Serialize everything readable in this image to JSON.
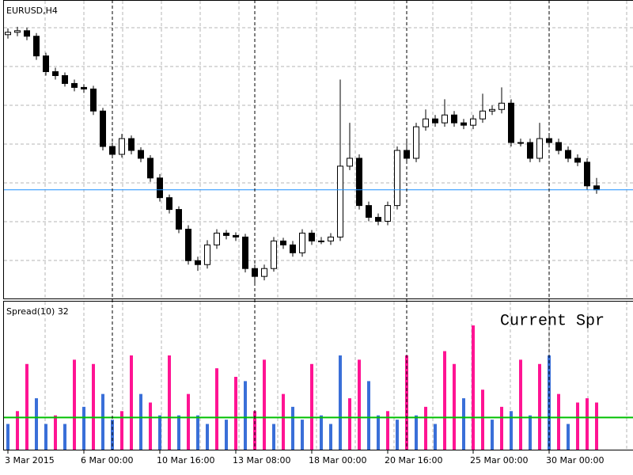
{
  "chart_data": [
    {
      "type": "candlestick",
      "title": "EURUSD,H4",
      "categories": [
        "3 Mar 2015",
        null,
        null,
        null,
        null,
        null,
        null,
        null,
        "6 Mar 00:00",
        null,
        null,
        null,
        null,
        null,
        null,
        null,
        "10 Mar 16:00",
        null,
        null,
        null,
        null,
        null,
        null,
        null,
        "13 Mar 08:00",
        null,
        null,
        null,
        null,
        null,
        null,
        null,
        "18 Mar 00:00",
        null,
        null,
        null,
        null,
        null,
        null,
        null,
        "20 Mar 16:00",
        null,
        null,
        null,
        null,
        null,
        null,
        null,
        null,
        "25 Mar 00:00",
        null,
        null,
        null,
        null,
        null,
        null,
        null,
        "30 Mar 00:00",
        null,
        null,
        null,
        null,
        null
      ],
      "open": [
        1.107,
        1.1076,
        1.108,
        1.1066,
        1.1016,
        1.0976,
        1.0966,
        1.0946,
        1.0936,
        1.0932,
        1.0876,
        1.0786,
        1.0766,
        1.0806,
        1.0776,
        1.0756,
        1.0706,
        1.0656,
        1.0626,
        1.0576,
        1.0496,
        1.0486,
        1.0536,
        1.0566,
        1.056,
        1.0556,
        1.0476,
        1.0456,
        1.0476,
        1.0546,
        1.0536,
        1.0516,
        1.0566,
        1.0546,
        1.0546,
        1.0556,
        1.0736,
        1.0756,
        1.0636,
        1.0606,
        1.0596,
        1.0636,
        1.0776,
        1.0756,
        1.0836,
        1.0856,
        1.0846,
        1.0866,
        1.0846,
        1.084,
        1.0856,
        1.0876,
        1.088,
        1.0896,
        1.0796,
        1.0796,
        1.0756,
        1.0806,
        1.0796,
        1.0776,
        1.0756,
        1.0746,
        1.0686
      ],
      "high": [
        1.1086,
        1.109,
        1.1088,
        1.1074,
        1.1024,
        1.0986,
        1.0974,
        1.0956,
        1.0944,
        1.094,
        1.0884,
        1.0796,
        1.0818,
        1.0814,
        1.0784,
        1.0764,
        1.0716,
        1.0664,
        1.0634,
        1.0586,
        1.0506,
        1.0548,
        1.0576,
        1.0574,
        1.0568,
        1.0564,
        1.0486,
        1.0486,
        1.0556,
        1.0554,
        1.0546,
        1.0576,
        1.0574,
        1.0556,
        1.0566,
        1.0956,
        1.0846,
        1.0766,
        1.0646,
        1.0616,
        1.0646,
        1.0786,
        1.08,
        1.0846,
        1.088,
        1.0866,
        1.0906,
        1.0876,
        1.0856,
        1.0866,
        1.092,
        1.089,
        1.0936,
        1.0906,
        1.0806,
        1.0806,
        1.0846,
        1.0816,
        1.0806,
        1.0786,
        1.0766,
        1.0756,
        1.0706
      ],
      "low": [
        1.106,
        1.1066,
        1.1056,
        1.1006,
        1.0966,
        1.0956,
        1.0938,
        1.0926,
        1.0922,
        1.0866,
        1.0776,
        1.0756,
        1.0758,
        1.0766,
        1.0746,
        1.0696,
        1.0646,
        1.0616,
        1.0566,
        1.0486,
        1.047,
        1.0476,
        1.0526,
        1.055,
        1.0546,
        1.0466,
        1.044,
        1.0446,
        1.0468,
        1.0526,
        1.0506,
        1.0506,
        1.0536,
        1.0538,
        1.0536,
        1.0546,
        1.0726,
        1.0626,
        1.0596,
        1.0586,
        1.0586,
        1.0626,
        1.0746,
        1.0746,
        1.0826,
        1.0836,
        1.0836,
        1.0836,
        1.083,
        1.083,
        1.0846,
        1.0866,
        1.087,
        1.0786,
        1.0786,
        1.0746,
        1.0746,
        1.0786,
        1.0766,
        1.0746,
        1.0736,
        1.0676,
        1.0666
      ],
      "close": [
        1.1076,
        1.108,
        1.1066,
        1.1016,
        1.0976,
        1.0966,
        1.0946,
        1.0936,
        1.0932,
        1.0876,
        1.0786,
        1.0766,
        1.0806,
        1.0776,
        1.0756,
        1.0706,
        1.0656,
        1.0626,
        1.0576,
        1.0496,
        1.0486,
        1.0536,
        1.0566,
        1.056,
        1.0556,
        1.0476,
        1.0456,
        1.0476,
        1.0546,
        1.0536,
        1.0516,
        1.0566,
        1.0546,
        1.0546,
        1.0556,
        1.0736,
        1.0756,
        1.0636,
        1.0606,
        1.0596,
        1.0636,
        1.0776,
        1.0756,
        1.0836,
        1.0856,
        1.0846,
        1.0866,
        1.0846,
        1.084,
        1.0856,
        1.0876,
        1.088,
        1.0896,
        1.0796,
        1.0796,
        1.0756,
        1.0806,
        1.0796,
        1.0776,
        1.0756,
        1.0746,
        1.0686,
        1.0676
      ],
      "ylim": [
        1.04,
        1.1156
      ],
      "grid": true,
      "up_color": "#ffffff",
      "down_color": "#000000",
      "bid_line_color": "#1e90ff"
    },
    {
      "type": "bar",
      "title": "Spread(10) 32",
      "annotation": "Current Spr",
      "annotation_color": "#ff0000",
      "values": [
        6,
        9,
        20,
        12,
        6,
        8,
        6,
        21,
        10,
        20,
        13,
        7,
        9,
        22,
        13,
        11,
        8,
        22,
        8,
        13,
        8,
        6,
        19,
        7,
        17,
        16,
        9,
        21,
        6,
        13,
        10,
        7,
        20,
        8,
        6,
        22,
        12,
        21,
        16,
        8,
        9,
        7,
        22,
        8,
        10,
        6,
        23,
        20,
        12,
        29,
        14,
        7,
        10,
        9,
        21,
        8,
        20,
        22,
        13,
        6,
        11,
        12,
        11
      ],
      "colors": [
        "#ff1493",
        "#3a6fd8"
      ],
      "color_index": [
        1,
        0,
        0,
        1,
        1,
        0,
        1,
        0,
        1,
        0,
        1,
        1,
        0,
        0,
        1,
        0,
        1,
        0,
        1,
        0,
        1,
        1,
        0,
        1,
        0,
        1,
        0,
        0,
        1,
        0,
        1,
        1,
        0,
        1,
        1,
        1,
        0,
        0,
        1,
        1,
        0,
        1,
        0,
        1,
        0,
        1,
        0,
        0,
        1,
        0,
        0,
        1,
        0,
        1,
        0,
        1,
        0,
        1,
        0,
        1,
        0,
        0,
        0
      ],
      "ylim": [
        0,
        34
      ],
      "level": 7.5,
      "level_color": "#00c000",
      "grid": true
    }
  ]
}
